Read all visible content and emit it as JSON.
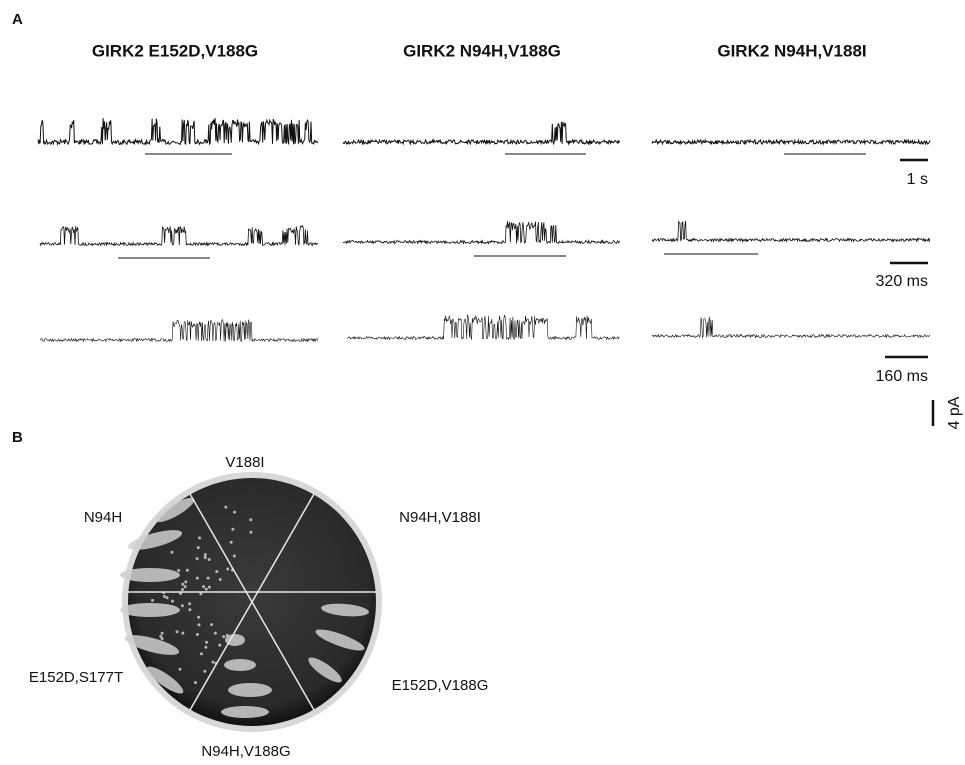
{
  "panel_a": {
    "label": "A",
    "columns": [
      "GIRK2 E152D,V188G",
      "GIRK2 N94H,V188G",
      "GIRK2 N94H,V188I"
    ],
    "scale_bars": {
      "time": [
        "1 s",
        "320 ms",
        "160 ms"
      ],
      "current": "4 pA"
    }
  },
  "panel_b": {
    "label": "B",
    "plate_labels": [
      "V188I",
      "N94H,V188I",
      "E152D,V188G",
      "N94H,V188G",
      "E152D,S177T",
      "N94H"
    ]
  }
}
